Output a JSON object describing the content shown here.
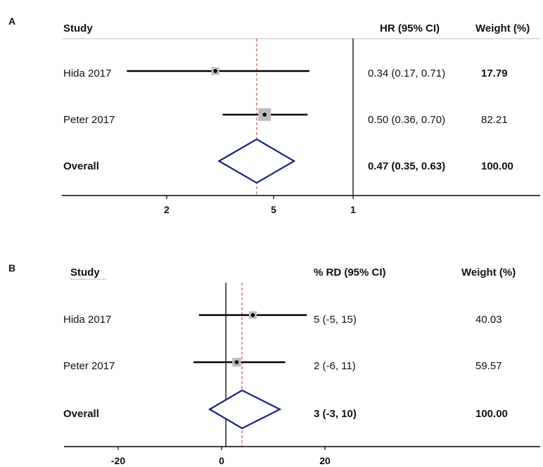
{
  "colors": {
    "ci_line": "#000000",
    "diamond": "#1a237e",
    "ref_line": "#c0392b",
    "box": "#bdbdbd",
    "axis": "#000000"
  },
  "panels": [
    {
      "label": "A",
      "headers": {
        "study": "Study",
        "estimate": "HR (95% CI)",
        "weight": "Weight (%)"
      },
      "rows": [
        {
          "study": "Hida 2017",
          "estimate": "0.34 (0.17, 0.71)",
          "weight": "17.79"
        },
        {
          "study": "Peter 2017",
          "estimate": "0.50 (0.36, 0.70)",
          "weight": "82.21"
        },
        {
          "study": "Overall",
          "estimate": "0.47 (0.35, 0.63)",
          "weight": "100.00"
        }
      ],
      "ticks": [
        "2",
        "5",
        "1"
      ]
    },
    {
      "label": "B",
      "headers": {
        "study": "Study",
        "estimate": "% RD (95% CI)",
        "weight": "Weight (%)"
      },
      "rows": [
        {
          "study": "Hida 2017",
          "estimate": "5 (-5, 15)",
          "weight": "40.03"
        },
        {
          "study": "Peter 2017",
          "estimate": "2 (-6, 11)",
          "weight": "59.57"
        },
        {
          "study": "Overall",
          "estimate": "3 (-3, 10)",
          "weight": "100.00"
        }
      ],
      "ticks": [
        "-20",
        "0",
        "20"
      ]
    }
  ],
  "chart_data": [
    {
      "type": "forest",
      "measure": "HR",
      "scale": "log",
      "xlim": [
        0.1,
        1
      ],
      "null_value": 1,
      "pooled_reference": 0.47,
      "studies": [
        {
          "name": "Hida 2017",
          "estimate": 0.34,
          "ci_low": 0.17,
          "ci_high": 0.71,
          "weight": 17.79
        },
        {
          "name": "Peter 2017",
          "estimate": 0.5,
          "ci_low": 0.36,
          "ci_high": 0.7,
          "weight": 82.21
        }
      ],
      "overall": {
        "name": "Overall",
        "estimate": 0.47,
        "ci_low": 0.35,
        "ci_high": 0.63,
        "weight": 100.0
      }
    },
    {
      "type": "forest",
      "measure": "% RD",
      "scale": "linear",
      "xlim": [
        -30,
        40
      ],
      "null_value": 0,
      "pooled_reference": 3,
      "studies": [
        {
          "name": "Hida 2017",
          "estimate": 5,
          "ci_low": -5,
          "ci_high": 15,
          "weight": 40.03
        },
        {
          "name": "Peter 2017",
          "estimate": 2,
          "ci_low": -6,
          "ci_high": 11,
          "weight": 59.57
        }
      ],
      "overall": {
        "name": "Overall",
        "estimate": 3,
        "ci_low": -3,
        "ci_high": 10,
        "weight": 100.0
      }
    }
  ]
}
